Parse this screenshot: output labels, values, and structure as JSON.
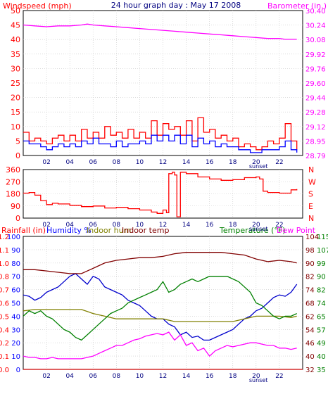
{
  "chart_data": [
    {
      "type": "line",
      "title": "24 hour graph day : May 17 2008",
      "ylabel_left": "Windspeed (mph)",
      "ylabel_right": "Barometer (in.)",
      "ylim_left": [
        0,
        50
      ],
      "yticks_left": [
        "0",
        "5",
        "10",
        "15",
        "20",
        "25",
        "30",
        "35",
        "40",
        "45",
        "50"
      ],
      "ylim_right": [
        28.79,
        30.4
      ],
      "yticks_right": [
        "28.79",
        "28.95",
        "29.12",
        "29.28",
        "29.44",
        "29.60",
        "29.76",
        "29.92",
        "30.08",
        "30.24",
        "30.40"
      ],
      "xlim": [
        0,
        24
      ],
      "xticks": [
        "02",
        "04",
        "06",
        "08",
        "10",
        "12",
        "14",
        "16",
        "18",
        "20",
        "22"
      ],
      "annotation": "sunset",
      "annotation_x": 20.2,
      "grid": true,
      "series": [
        {
          "name": "Barometer (in.)",
          "axis": "right",
          "color": "#ff00ff",
          "x": [
            0,
            1,
            2,
            3,
            4,
            5,
            5.5,
            6,
            7,
            8,
            9,
            10,
            11,
            12,
            13,
            14,
            15,
            16,
            17,
            18,
            19,
            20,
            21,
            22,
            22.5,
            23,
            23.5
          ],
          "values": [
            30.24,
            30.23,
            30.22,
            30.23,
            30.23,
            30.24,
            30.25,
            30.24,
            30.23,
            30.22,
            30.21,
            30.2,
            30.19,
            30.18,
            30.17,
            30.16,
            30.15,
            30.14,
            30.13,
            30.12,
            30.11,
            30.1,
            30.09,
            30.09,
            30.08,
            30.08,
            30.08
          ]
        },
        {
          "name": "Windspeed gust",
          "axis": "left",
          "color": "#ff0000",
          "x": [
            0,
            0.5,
            1,
            1.5,
            2,
            2.5,
            3,
            3.5,
            4,
            4.5,
            5,
            5.5,
            6,
            6.5,
            7,
            7.5,
            8,
            8.5,
            9,
            9.5,
            10,
            10.5,
            11,
            11.5,
            12,
            12.5,
            13,
            13.5,
            14,
            14.5,
            15,
            15.5,
            16,
            16.5,
            17,
            17.5,
            18,
            18.5,
            19,
            19.5,
            20,
            20.5,
            21,
            21.5,
            22,
            22.5,
            23,
            23.5
          ],
          "values": [
            8,
            5,
            6,
            5,
            4,
            6,
            7,
            5,
            7,
            5,
            9,
            6,
            8,
            6,
            10,
            7,
            8,
            6,
            9,
            6,
            8,
            6,
            12,
            7,
            11,
            9,
            10,
            7,
            12,
            5,
            13,
            8,
            9,
            6,
            7,
            5,
            6,
            3,
            4,
            3,
            2,
            3,
            5,
            4,
            6,
            11,
            5,
            2
          ]
        },
        {
          "name": "Windspeed",
          "axis": "left",
          "color": "#0000ff",
          "x": [
            0,
            0.5,
            1,
            1.5,
            2,
            2.5,
            3,
            3.5,
            4,
            4.5,
            5,
            5.5,
            6,
            6.5,
            7,
            7.5,
            8,
            8.5,
            9,
            9.5,
            10,
            10.5,
            11,
            11.5,
            12,
            12.5,
            13,
            13.5,
            14,
            14.5,
            15,
            15.5,
            16,
            16.5,
            17,
            17.5,
            18,
            18.5,
            19,
            19.5,
            20,
            20.5,
            21,
            21.5,
            22,
            22.5,
            23,
            23.5
          ],
          "values": [
            5,
            4,
            4,
            3,
            2,
            3,
            4,
            3,
            4,
            3,
            5,
            4,
            6,
            4,
            4,
            3,
            5,
            3,
            4,
            4,
            5,
            4,
            7,
            5,
            7,
            5,
            7,
            4,
            7,
            3,
            6,
            4,
            5,
            3,
            4,
            3,
            3,
            2,
            2,
            1,
            1,
            2,
            2,
            2,
            3,
            5,
            2,
            1
          ]
        }
      ]
    },
    {
      "type": "line",
      "ylabel_left": "",
      "ylabel_right": "N W S E N",
      "ylim_left": [
        0,
        360
      ],
      "yticks_left": [
        "0",
        "90",
        "180",
        "270",
        "360"
      ],
      "yticks_right": [
        "N",
        "E",
        "S",
        "W",
        "N"
      ],
      "xlim": [
        0,
        24
      ],
      "xticks": [
        "02",
        "04",
        "06",
        "08",
        "10",
        "12",
        "14",
        "16",
        "18",
        "20",
        "22"
      ],
      "annotation": "sunset",
      "annotation_x": 20.2,
      "grid": true,
      "series": [
        {
          "name": "Wind direction",
          "color": "#ff0000",
          "x": [
            0,
            0.5,
            1,
            1.5,
            2,
            2.5,
            3,
            4,
            5,
            6,
            7,
            8,
            9,
            10,
            11,
            11.5,
            12,
            12.3,
            12.5,
            12.8,
            13,
            13.2,
            13.5,
            14,
            15,
            16,
            17,
            18,
            19,
            20,
            20.3,
            20.6,
            21,
            22,
            23,
            23.5
          ],
          "values": [
            185,
            190,
            170,
            130,
            100,
            110,
            105,
            95,
            85,
            90,
            75,
            80,
            70,
            60,
            45,
            35,
            60,
            40,
            330,
            340,
            320,
            10,
            340,
            330,
            305,
            290,
            280,
            285,
            300,
            305,
            290,
            200,
            190,
            185,
            210,
            215
          ]
        }
      ]
    },
    {
      "type": "line",
      "legend": [
        "Rainfall (in)",
        "Humidity %",
        "Indoor hum",
        "Indoor temp",
        "Temperature (°F)",
        "Dew Point"
      ],
      "ylim_left_humidity": [
        0,
        100
      ],
      "yticks_left_humidity": [
        "0",
        "10",
        "20",
        "30",
        "40",
        "50",
        "60",
        "70",
        "80",
        "90",
        "100"
      ],
      "yticks_left_rain": [
        "0.0",
        "0.1",
        "0.2",
        "0.4",
        "0.5",
        "0.6",
        "0.7",
        "0.8",
        "1.0",
        "1.1",
        "1.2"
      ],
      "ylim_right_temp": [
        32,
        115
      ],
      "yticks_right_a": [
        "32",
        "40",
        "46",
        "54",
        "62",
        "68",
        "74",
        "82",
        "90",
        "98",
        "104"
      ],
      "yticks_right_b": [
        "35",
        "40",
        "49",
        "57",
        "65",
        "74",
        "82",
        "90",
        "99",
        "107",
        "115"
      ],
      "xlim": [
        0,
        24
      ],
      "xticks": [
        "02",
        "04",
        "06",
        "08",
        "10",
        "12",
        "14",
        "16",
        "18",
        "20",
        "22"
      ],
      "annotation": "sunset",
      "annotation_x": 20.2,
      "grid": true,
      "series": [
        {
          "name": "Rainfall (in)",
          "axis": "left",
          "color": "#cc0000",
          "x": [
            0,
            24
          ],
          "values": [
            0,
            0
          ]
        },
        {
          "name": "Humidity %",
          "axis": "left",
          "color": "#0000cc",
          "x": [
            0,
            0.5,
            1,
            1.5,
            2,
            2.5,
            3,
            3.5,
            4,
            4.5,
            5,
            5.5,
            6,
            6.5,
            7,
            7.5,
            8,
            8.5,
            9,
            9.5,
            10,
            10.5,
            11,
            11.5,
            12,
            12.5,
            13,
            13.5,
            14,
            14.5,
            15,
            15.5,
            16,
            16.5,
            17,
            17.5,
            18,
            18.5,
            19,
            19.5,
            20,
            20.5,
            21,
            21.5,
            22,
            22.5,
            23,
            23.5
          ],
          "values": [
            56,
            55,
            52,
            54,
            58,
            60,
            62,
            66,
            70,
            72,
            68,
            64,
            70,
            68,
            62,
            60,
            58,
            56,
            52,
            50,
            48,
            44,
            40,
            38,
            38,
            34,
            32,
            26,
            28,
            24,
            25,
            22,
            22,
            24,
            26,
            28,
            30,
            34,
            38,
            40,
            44,
            46,
            50,
            54,
            56,
            55,
            58,
            64
          ]
        },
        {
          "name": "Indoor hum",
          "axis": "left",
          "color": "#808000",
          "x": [
            0,
            1,
            2,
            3,
            4,
            5,
            6,
            7,
            8,
            9,
            10,
            11,
            12,
            13,
            14,
            15,
            16,
            17,
            18,
            19,
            20,
            21,
            22,
            23,
            23.5
          ],
          "values": [
            44,
            45,
            45,
            45,
            45,
            45,
            42,
            40,
            38,
            38,
            38,
            38,
            38,
            36,
            36,
            36,
            36,
            36,
            36,
            38,
            40,
            40,
            40,
            39,
            40
          ]
        },
        {
          "name": "Indoor temp",
          "axis": "left",
          "color": "#800000",
          "x": [
            0,
            1,
            2,
            3,
            4,
            5,
            6,
            7,
            8,
            9,
            10,
            11,
            12,
            13,
            14,
            15,
            16,
            17,
            18,
            19,
            20,
            21,
            22,
            23,
            23.5
          ],
          "values": [
            75,
            75,
            74,
            73,
            72,
            72,
            76,
            80,
            82,
            83,
            84,
            84,
            85,
            87,
            88,
            88,
            88,
            88,
            87,
            86,
            83,
            81,
            82,
            81,
            80
          ]
        },
        {
          "name": "Temperature (°F)",
          "axis": "left",
          "color": "#008000",
          "x": [
            0,
            0.5,
            1,
            1.5,
            2,
            2.5,
            3,
            3.5,
            4,
            4.5,
            5,
            5.5,
            6,
            6.5,
            7,
            7.5,
            8,
            8.5,
            9,
            9.5,
            10,
            10.5,
            11,
            11.5,
            12,
            12.5,
            13,
            13.5,
            14,
            14.5,
            15,
            15.5,
            16,
            16.5,
            17,
            17.5,
            18,
            18.5,
            19,
            19.5,
            20,
            20.5,
            21,
            21.5,
            22,
            22.5,
            23,
            23.5
          ],
          "values": [
            40,
            44,
            42,
            44,
            40,
            38,
            34,
            30,
            28,
            24,
            22,
            26,
            30,
            34,
            38,
            42,
            44,
            46,
            50,
            52,
            54,
            56,
            58,
            60,
            66,
            58,
            60,
            64,
            66,
            68,
            66,
            68,
            70,
            70,
            70,
            70,
            68,
            66,
            62,
            58,
            50,
            48,
            44,
            40,
            38,
            40,
            40,
            42
          ]
        },
        {
          "name": "Dew Point",
          "axis": "left",
          "color": "#ff00ff",
          "x": [
            0,
            0.5,
            1,
            1.5,
            2,
            2.5,
            3,
            3.5,
            4,
            4.5,
            5,
            5.5,
            6,
            6.5,
            7,
            7.5,
            8,
            8.5,
            9,
            9.5,
            10,
            10.5,
            11,
            11.5,
            12,
            12.5,
            13,
            13.5,
            14,
            14.5,
            15,
            15.5,
            16,
            16.5,
            17,
            17.5,
            18,
            18.5,
            19,
            19.5,
            20,
            20.5,
            21,
            21.5,
            22,
            22.5,
            23,
            23.5
          ],
          "values": [
            10,
            9,
            9,
            8,
            8,
            9,
            8,
            8,
            8,
            8,
            8,
            9,
            10,
            12,
            14,
            16,
            18,
            18,
            20,
            22,
            23,
            25,
            26,
            27,
            26,
            28,
            22,
            26,
            18,
            20,
            14,
            16,
            10,
            14,
            16,
            18,
            17,
            18,
            19,
            20,
            20,
            19,
            18,
            18,
            16,
            16,
            15,
            16
          ]
        }
      ]
    }
  ],
  "labels": {
    "panel1_title": "24 hour graph day : May 17 2008",
    "panel1_left": "Windspeed (mph)",
    "panel1_right": "Barometer (in.)",
    "panel2_right_letters": [
      "N",
      "W",
      "S",
      "E",
      "N"
    ],
    "panel3_rain": "Rainfall (in)",
    "panel3_humidity": "Humidity %",
    "panel3_indoor_hum": "Indoor hum",
    "panel3_indoor_temp": "Indoor temp",
    "panel3_temperature": "Temperature (°F)",
    "panel3_dewpoint": "Dew Point",
    "sunset": "sunset"
  },
  "colors": {
    "magenta": "#ff00ff",
    "red": "#ff0000",
    "blue": "#0000ff",
    "olive": "#808000",
    "maroon": "#800000",
    "green": "#008000",
    "dark_blue": "#000080",
    "axis_tick_text": "#000080"
  }
}
